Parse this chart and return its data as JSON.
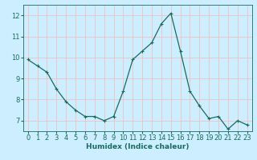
{
  "x": [
    0,
    1,
    2,
    3,
    4,
    5,
    6,
    7,
    8,
    9,
    10,
    11,
    12,
    13,
    14,
    15,
    16,
    17,
    18,
    19,
    20,
    21,
    22,
    23
  ],
  "y": [
    9.9,
    9.6,
    9.3,
    8.5,
    7.9,
    7.5,
    7.2,
    7.2,
    7.0,
    7.2,
    8.4,
    9.9,
    10.3,
    10.7,
    11.6,
    12.1,
    10.3,
    8.4,
    7.7,
    7.1,
    7.2,
    6.6,
    7.0,
    6.8
  ],
  "line_color": "#1a6b5e",
  "marker": "+",
  "marker_size": 3,
  "bg_color": "#cceeff",
  "grid_color": "#f0c0c0",
  "xlabel": "Humidex (Indice chaleur)",
  "xlim": [
    -0.5,
    23.5
  ],
  "ylim": [
    6.5,
    12.5
  ],
  "yticks": [
    7,
    8,
    9,
    10,
    11,
    12
  ],
  "xticks": [
    0,
    1,
    2,
    3,
    4,
    5,
    6,
    7,
    8,
    9,
    10,
    11,
    12,
    13,
    14,
    15,
    16,
    17,
    18,
    19,
    20,
    21,
    22,
    23
  ],
  "xlabel_fontsize": 6.5,
  "tick_fontsize": 6.0
}
